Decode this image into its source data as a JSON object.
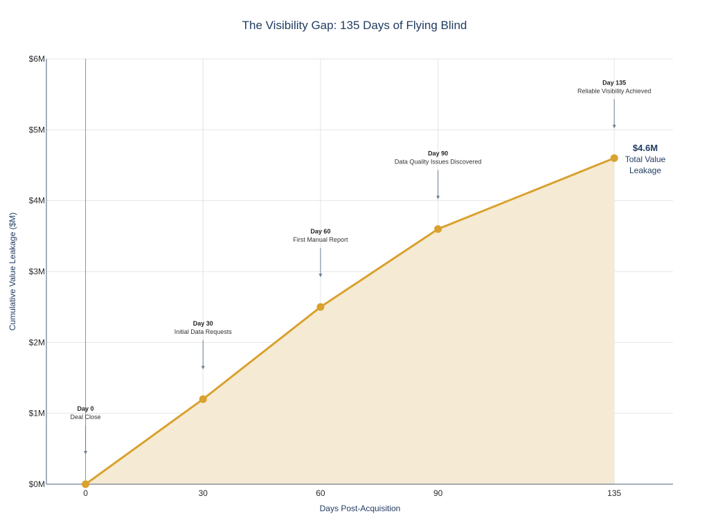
{
  "chart_data": {
    "type": "area",
    "title": "The Visibility Gap: 135 Days of Flying Blind",
    "xlabel": "Days Post-Acquisition",
    "ylabel": "Cumulative Value Leakage ($M)",
    "x": [
      0,
      30,
      60,
      90,
      135
    ],
    "series": [
      {
        "values": [
          0,
          1.2,
          2.5,
          3.6,
          4.6
        ]
      }
    ],
    "xlim": [
      -10,
      150
    ],
    "ylim": [
      0,
      6
    ],
    "xticks": [
      0,
      30,
      60,
      90,
      135
    ],
    "xtick_labels": [
      "0",
      "30",
      "60",
      "90",
      "135"
    ],
    "yticks": [
      0,
      1,
      2,
      3,
      4,
      5,
      6
    ],
    "ytick_labels": [
      "$0M",
      "$1M",
      "$2M",
      "$3M",
      "$4M",
      "$5M",
      "$6M"
    ],
    "grid": true,
    "annotations": [
      {
        "x": 0,
        "label": "Day 0",
        "sublabel": "Deal Close"
      },
      {
        "x": 30,
        "label": "Day 30",
        "sublabel": "Initial Data Requests"
      },
      {
        "x": 60,
        "label": "Day 60",
        "sublabel": "First Manual Report"
      },
      {
        "x": 90,
        "label": "Day 90",
        "sublabel": "Data Quality Issues Discovered"
      },
      {
        "x": 135,
        "label": "Day 135",
        "sublabel": "Reliable Visibility Achieved"
      }
    ],
    "callout": {
      "value": "$4.6M",
      "line1": "Total Value",
      "line2": "Leakage"
    },
    "colors": {
      "line": "#d9a12e",
      "fill": "#f5ead3",
      "marker": "#d9a12e",
      "grid": "#e4e4e4",
      "axis": "#4a5f7a",
      "text": "#1f3a5f",
      "arrow": "#6b7d92"
    }
  }
}
